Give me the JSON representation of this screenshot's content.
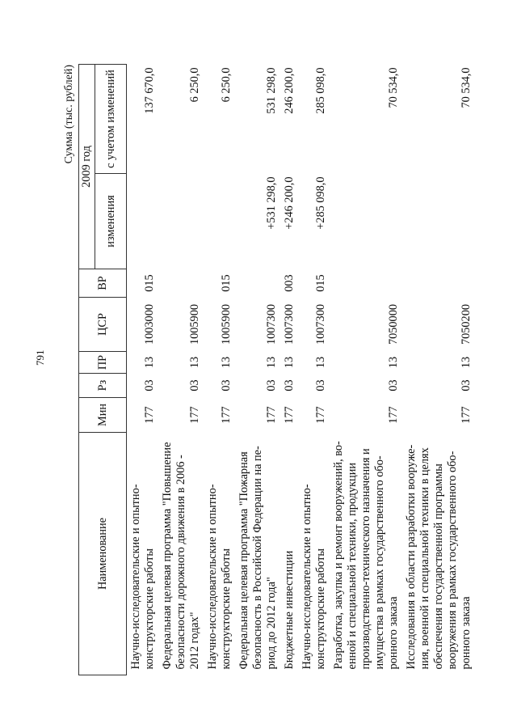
{
  "page_number": "791",
  "units_caption": "Сумма (тыс. рублей)",
  "header": {
    "name": "Наименование",
    "min": "Мин",
    "rz": "Рз",
    "pr": "ПР",
    "csr": "ЦСР",
    "vr": "ВР",
    "year": "2009 год",
    "changes": "изменения",
    "with_changes": "с учетом изменений"
  },
  "rows": [
    {
      "name": [
        "Научно-исследовательские и опытно-",
        "конструкторские работы"
      ],
      "min": "177",
      "rz": "03",
      "pr": "13",
      "csr": "1003000",
      "vr": "015",
      "changes": "",
      "total": "137 670,0"
    },
    {
      "name": [
        "Федеральная целевая программа \"Повышение",
        "безопасности дорожного движения в 2006 -",
        "2012 годах\""
      ],
      "min": "177",
      "rz": "03",
      "pr": "13",
      "csr": "1005900",
      "vr": "",
      "changes": "",
      "total": "6 250,0"
    },
    {
      "name": [
        "Научно-исследовательские и опытно-",
        "конструкторские работы"
      ],
      "min": "177",
      "rz": "03",
      "pr": "13",
      "csr": "1005900",
      "vr": "015",
      "changes": "",
      "total": "6 250,0"
    },
    {
      "name": [
        "Федеральная целевая программа \"Пожарная",
        "безопасность в Российской Федерации на пе-",
        "риод до 2012 года\""
      ],
      "min": "177",
      "rz": "03",
      "pr": "13",
      "csr": "1007300",
      "vr": "",
      "changes": "+531 298,0",
      "total": "531 298,0"
    },
    {
      "name": [
        "Бюджетные инвестиции"
      ],
      "min": "177",
      "rz": "03",
      "pr": "13",
      "csr": "1007300",
      "vr": "003",
      "changes": "+246 200,0",
      "total": "246 200,0"
    },
    {
      "name": [
        "Научно-исследовательские и опытно-",
        "конструкторские работы"
      ],
      "min": "177",
      "rz": "03",
      "pr": "13",
      "csr": "1007300",
      "vr": "015",
      "changes": "+285 098,0",
      "total": "285 098,0"
    },
    {
      "name": [
        "Разработка, закупка и ремонт вооружений, во-",
        "енной и специальной техники, продукции",
        "производственно-технического назначения и",
        "имущества в рамках государственного обо-",
        "ронного заказа"
      ],
      "min": "177",
      "rz": "03",
      "pr": "13",
      "csr": "7050000",
      "vr": "",
      "changes": "",
      "total": "70 534,0"
    },
    {
      "name": [
        "Исследования в области разработки вооруже-",
        "ния, военной и специальной техники в целях",
        "обеспечения государственной программы",
        "вооружения в рамках государственного обо-",
        "ронного заказа"
      ],
      "min": "177",
      "rz": "03",
      "pr": "13",
      "csr": "7050200",
      "vr": "",
      "changes": "",
      "total": "70 534,0"
    }
  ]
}
